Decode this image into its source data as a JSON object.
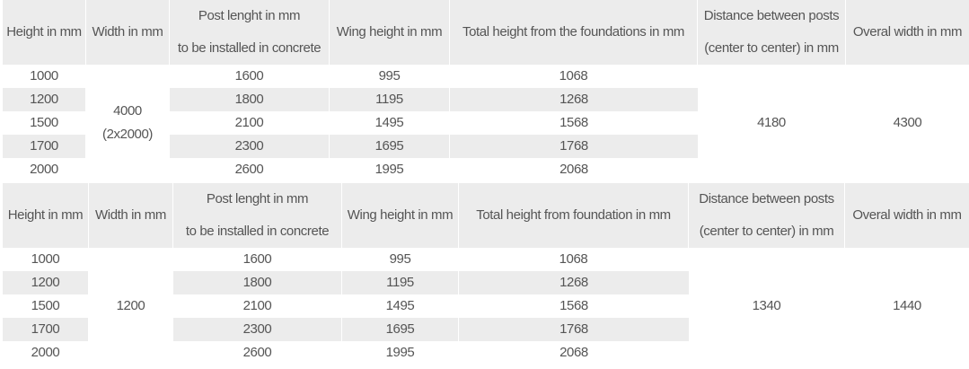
{
  "tables": [
    {
      "headers": {
        "height": "Height in mm",
        "width": "Width in mm",
        "post_line1": "Post lenght in mm",
        "post_line2": "to be installed in concrete",
        "wing": "Wing height in mm",
        "total": "Total height from the foundations in mm",
        "distance_line1": "Distance between posts",
        "distance_line2": "(center to center) in mm",
        "overall": "Overal width in mm"
      },
      "width_line1": "4000",
      "width_line2": "(2x2000)",
      "distance": "4180",
      "overall": "4300",
      "rows": [
        {
          "height": "1000",
          "post": "1600",
          "wing": "995",
          "total": "1068"
        },
        {
          "height": "1200",
          "post": "1800",
          "wing": "1195",
          "total": "1268"
        },
        {
          "height": "1500",
          "post": "2100",
          "wing": "1495",
          "total": "1568"
        },
        {
          "height": "1700",
          "post": "2300",
          "wing": "1695",
          "total": "1768"
        },
        {
          "height": "2000",
          "post": "2600",
          "wing": "1995",
          "total": "2068"
        }
      ]
    },
    {
      "headers": {
        "height": "Height in mm",
        "width": "Width in mm",
        "post_line1": "Post lenght in mm",
        "post_line2": "to be installed in concrete",
        "wing": "Wing height in mm",
        "total": "Total height from foundation in mm",
        "distance_line1": "Distance between posts",
        "distance_line2": "(center to center) in mm",
        "overall": "Overal width in mm"
      },
      "width_line1": "1200",
      "width_line2": "",
      "distance": "1340",
      "overall": "1440",
      "rows": [
        {
          "height": "1000",
          "post": "1600",
          "wing": "995",
          "total": "1068"
        },
        {
          "height": "1200",
          "post": "1800",
          "wing": "1195",
          "total": "1268"
        },
        {
          "height": "1500",
          "post": "2100",
          "wing": "1495",
          "total": "1568"
        },
        {
          "height": "1700",
          "post": "2300",
          "wing": "1695",
          "total": "1768"
        },
        {
          "height": "2000",
          "post": "2600",
          "wing": "1995",
          "total": "2068"
        }
      ]
    }
  ]
}
